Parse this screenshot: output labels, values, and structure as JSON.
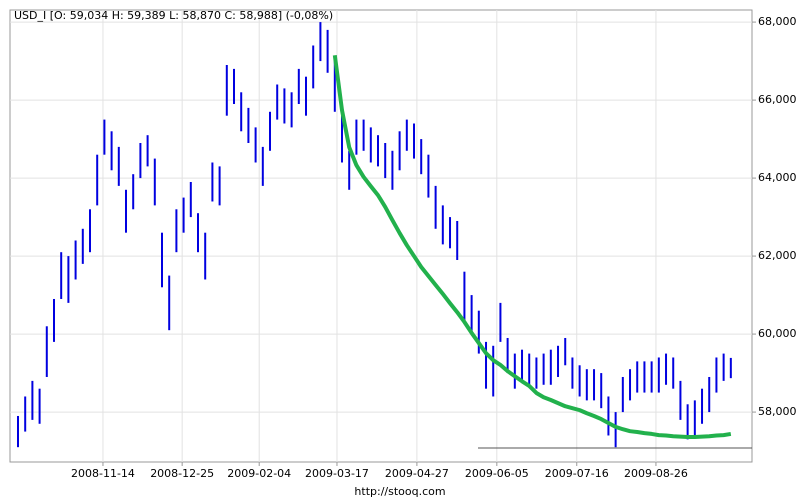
{
  "chart_data": {
    "type": "ohlc",
    "title": "USD_I [O: 59,034  H: 59,389  L: 58,870  C: 58,988] (-0,08%)",
    "footer": "http://stooq.com",
    "xlim": [
      -1.11,
      101.94
    ],
    "xticks": [
      {
        "value": 11.8,
        "label": "2008-11-14"
      },
      {
        "value": 22.8,
        "label": "2008-12-25"
      },
      {
        "value": 33.5,
        "label": "2009-02-04"
      },
      {
        "value": 44.3,
        "label": "2009-03-17"
      },
      {
        "value": 55.4,
        "label": "2009-04-27"
      },
      {
        "value": 66.5,
        "label": "2009-06-05"
      },
      {
        "value": 77.6,
        "label": "2009-07-16"
      },
      {
        "value": 88.6,
        "label": "2009-08-26"
      }
    ],
    "ylim": [
      56.72,
      68.31
    ],
    "yticks": [
      {
        "value": 58,
        "label": "58,000"
      },
      {
        "value": 60,
        "label": "60,000"
      },
      {
        "value": 62,
        "label": "62,000"
      },
      {
        "value": 64,
        "label": "64,000"
      },
      {
        "value": 66,
        "label": "66,000"
      },
      {
        "value": 68,
        "label": "68,000"
      }
    ],
    "grid": true,
    "series": [
      {
        "color": "#0000e0",
        "high": [
          57.9,
          58.4,
          58.8,
          58.6,
          60.2,
          60.9,
          62.1,
          62.0,
          62.4,
          62.7,
          63.2,
          64.6,
          65.5,
          65.2,
          64.8,
          63.7,
          64.1,
          64.9,
          65.1,
          64.5,
          62.6,
          61.5,
          63.2,
          63.5,
          63.9,
          63.1,
          62.6,
          64.4,
          64.3,
          66.9,
          66.8,
          66.2,
          65.8,
          65.3,
          64.8,
          65.7,
          66.4,
          66.3,
          66.2,
          66.8,
          66.6,
          67.4,
          68.0,
          67.8,
          67.0,
          65.7,
          64.7,
          65.5,
          65.5,
          65.3,
          65.1,
          64.9,
          64.7,
          65.2,
          65.5,
          65.4,
          65.0,
          64.6,
          63.8,
          63.3,
          63.0,
          62.9,
          61.6,
          61.0,
          60.6,
          59.8,
          59.7,
          60.8,
          59.9,
          59.5,
          59.6,
          59.5,
          59.4,
          59.5,
          59.6,
          59.7,
          59.9,
          59.4,
          59.2,
          59.1,
          59.1,
          59.0,
          58.4,
          58.0,
          58.9,
          59.1,
          59.3,
          59.3,
          59.3,
          59.4,
          59.5,
          59.4,
          58.8,
          58.2,
          58.3,
          58.6,
          58.9,
          59.4,
          59.5,
          59.389
        ],
        "low": [
          57.1,
          57.5,
          57.8,
          57.7,
          58.9,
          59.8,
          60.9,
          60.8,
          61.4,
          61.8,
          62.1,
          63.3,
          64.6,
          64.2,
          63.8,
          62.6,
          63.2,
          64.0,
          64.3,
          63.3,
          61.2,
          60.1,
          62.1,
          62.6,
          63.0,
          62.1,
          61.4,
          63.4,
          63.3,
          65.6,
          65.9,
          65.2,
          64.9,
          64.4,
          63.8,
          64.7,
          65.5,
          65.4,
          65.3,
          65.9,
          65.6,
          66.3,
          67.0,
          66.7,
          65.7,
          64.4,
          63.7,
          64.6,
          64.7,
          64.4,
          64.3,
          64.0,
          63.7,
          64.2,
          64.7,
          64.5,
          64.1,
          63.5,
          62.7,
          62.3,
          62.2,
          61.9,
          60.3,
          60.0,
          59.5,
          58.6,
          58.4,
          59.8,
          59.0,
          58.6,
          58.8,
          58.7,
          58.6,
          58.7,
          58.7,
          58.9,
          59.2,
          58.6,
          58.4,
          58.3,
          58.3,
          58.1,
          57.4,
          57.1,
          58.0,
          58.3,
          58.5,
          58.5,
          58.5,
          58.5,
          58.7,
          58.6,
          57.8,
          57.3,
          57.4,
          57.7,
          58.0,
          58.5,
          58.8,
          58.87
        ]
      },
      {
        "color": "#22b14c",
        "values": [
          null,
          null,
          null,
          null,
          null,
          null,
          null,
          null,
          null,
          null,
          null,
          null,
          null,
          null,
          null,
          null,
          null,
          null,
          null,
          null,
          null,
          null,
          null,
          null,
          null,
          null,
          null,
          null,
          null,
          null,
          null,
          null,
          null,
          null,
          null,
          null,
          null,
          null,
          null,
          null,
          null,
          null,
          null,
          null,
          67.15,
          65.74,
          64.79,
          64.33,
          64.03,
          63.79,
          63.56,
          63.26,
          62.92,
          62.59,
          62.28,
          62.0,
          61.72,
          61.49,
          61.26,
          61.03,
          60.79,
          60.56,
          60.31,
          60.03,
          59.77,
          59.51,
          59.33,
          59.21,
          59.05,
          58.92,
          58.79,
          58.67,
          58.49,
          58.38,
          58.31,
          58.23,
          58.15,
          58.1,
          58.05,
          57.97,
          57.9,
          57.82,
          57.72,
          57.62,
          57.56,
          57.51,
          57.49,
          57.46,
          57.44,
          57.41,
          57.4,
          57.38,
          57.37,
          57.36,
          57.36,
          57.37,
          57.38,
          57.4,
          57.41,
          57.44
        ]
      }
    ],
    "reference_line": 57.08
  }
}
